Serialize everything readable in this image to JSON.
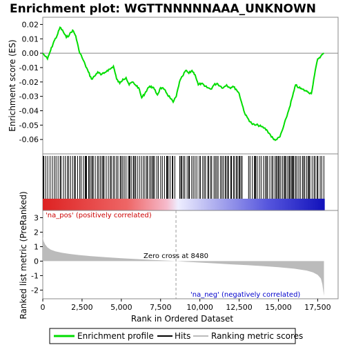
{
  "title": "Enrichment plot: WGTTNNNNNAAA_UNKNOWN",
  "chart_data": [
    {
      "type": "line",
      "name": "enrichment-profile",
      "ylabel": "Enrichment score (ES)",
      "ylim": [
        -0.07,
        0.025
      ],
      "yticks": [
        "0.02",
        "0.01",
        "0.00",
        "-0.01",
        "-0.02",
        "-0.03",
        "-0.04",
        "-0.05",
        "-0.06"
      ],
      "ytick_values": [
        0.02,
        0.01,
        0.0,
        -0.01,
        -0.02,
        -0.03,
        -0.04,
        -0.05,
        -0.06
      ],
      "line_color": "#00dd00",
      "x": [
        0,
        300,
        500,
        700,
        900,
        1100,
        1300,
        1500,
        1700,
        1900,
        2100,
        2300,
        2500,
        2700,
        2900,
        3100,
        3300,
        3500,
        3700,
        3900,
        4100,
        4300,
        4500,
        4700,
        4900,
        5100,
        5300,
        5500,
        5700,
        5900,
        6100,
        6300,
        6500,
        6700,
        6900,
        7100,
        7300,
        7500,
        7700,
        7900,
        8100,
        8300,
        8500,
        8700,
        8900,
        9100,
        9300,
        9500,
        9700,
        9900,
        10100,
        10300,
        10500,
        10700,
        10900,
        11100,
        11300,
        11500,
        11700,
        11900,
        12100,
        12300,
        12500,
        12700,
        12900,
        13100,
        13300,
        13500,
        13700,
        13900,
        14100,
        14300,
        14500,
        14700,
        14900,
        15100,
        15300,
        15500,
        15700,
        15900,
        16100,
        16300,
        16500,
        16700,
        16900,
        17100,
        17300,
        17500,
        17700,
        17900
      ],
      "y": [
        0.0,
        -0.004,
        0.002,
        0.008,
        0.012,
        0.018,
        0.015,
        0.011,
        0.013,
        0.016,
        0.012,
        0.002,
        -0.003,
        -0.008,
        -0.013,
        -0.018,
        -0.016,
        -0.013,
        -0.015,
        -0.014,
        -0.012,
        -0.011,
        -0.009,
        -0.018,
        -0.021,
        -0.018,
        -0.017,
        -0.022,
        -0.02,
        -0.022,
        -0.024,
        -0.031,
        -0.028,
        -0.024,
        -0.023,
        -0.025,
        -0.029,
        -0.024,
        -0.025,
        -0.028,
        -0.031,
        -0.034,
        -0.03,
        -0.02,
        -0.016,
        -0.012,
        -0.014,
        -0.012,
        -0.015,
        -0.022,
        -0.021,
        -0.023,
        -0.024,
        -0.025,
        -0.022,
        -0.021,
        -0.023,
        -0.024,
        -0.022,
        -0.024,
        -0.023,
        -0.025,
        -0.028,
        -0.036,
        -0.043,
        -0.046,
        -0.049,
        -0.05,
        -0.05,
        -0.051,
        -0.052,
        -0.054,
        -0.057,
        -0.06,
        -0.06,
        -0.058,
        -0.052,
        -0.045,
        -0.038,
        -0.03,
        -0.022,
        -0.024,
        -0.025,
        -0.026,
        -0.027,
        -0.028,
        -0.015,
        -0.004,
        -0.002,
        0.0
      ]
    },
    {
      "type": "hits",
      "name": "hits"
    },
    {
      "type": "area",
      "name": "ranking-metric-scores",
      "ylabel": "Ranked list metric (PreRanked)",
      "xlabel": "Rank in Ordered Dataset",
      "xlim": [
        0,
        18800
      ],
      "xticks": [
        "0",
        "2,500",
        "5,000",
        "7,500",
        "10,000",
        "12,500",
        "15,000",
        "17,500"
      ],
      "xtick_values": [
        0,
        2500,
        5000,
        7500,
        10000,
        12500,
        15000,
        17500
      ],
      "ylim": [
        -2.6,
        3.5
      ],
      "yticks": [
        "3",
        "2",
        "1",
        "0",
        "-1",
        "-2"
      ],
      "ytick_values": [
        3,
        2,
        1,
        0,
        -1,
        -2
      ],
      "x": [
        0,
        50,
        150,
        300,
        500,
        800,
        1200,
        1700,
        2300,
        3000,
        4000,
        5000,
        6000,
        7000,
        8000,
        8480,
        9000,
        10000,
        11000,
        12000,
        13000,
        14000,
        15000,
        16000,
        16800,
        17200,
        17500,
        17700,
        17800,
        17900
      ],
      "y": [
        1.7,
        1.4,
        1.15,
        0.95,
        0.8,
        0.68,
        0.58,
        0.5,
        0.42,
        0.35,
        0.27,
        0.2,
        0.14,
        0.08,
        0.03,
        0.0,
        -0.04,
        -0.1,
        -0.16,
        -0.22,
        -0.28,
        -0.34,
        -0.42,
        -0.52,
        -0.65,
        -0.78,
        -0.95,
        -1.2,
        -1.6,
        -2.4
      ],
      "fill_color": "#bbbbbb",
      "zero_cross": 8480,
      "annotations": {
        "zero_cross": "Zero cross at 8480",
        "pos": "'na_pos' (positively correlated)",
        "neg": "'na_neg' (negatively correlated)",
        "pos_color": "#cc0000",
        "neg_color": "#0000cc"
      }
    }
  ],
  "legend": {
    "items": [
      {
        "label": "Enrichment profile",
        "color": "#00dd00"
      },
      {
        "label": "Hits",
        "color": "#000000"
      },
      {
        "label": "Ranking metric scores",
        "color": "#bbbbbb"
      }
    ]
  }
}
